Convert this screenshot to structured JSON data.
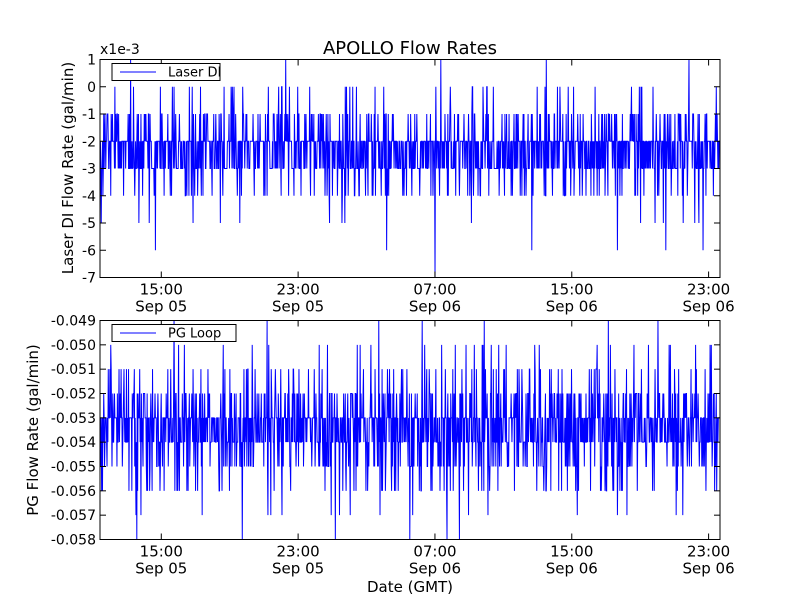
{
  "chart_data": {
    "type": "line",
    "title": "APOLLO Flow Rates",
    "xlabel": "Date (GMT)",
    "colors": {
      "series": "#0000ff"
    },
    "x_ticks": [
      {
        "time": "2015-09-05 15:00",
        "line1": "15:00",
        "line2": "Sep 05"
      },
      {
        "time": "2015-09-05 23:00",
        "line1": "23:00",
        "line2": "Sep 05"
      },
      {
        "time": "2015-09-06 07:00",
        "line1": "07:00",
        "line2": "Sep 06"
      },
      {
        "time": "2015-09-06 15:00",
        "line1": "15:00",
        "line2": "Sep 06"
      },
      {
        "time": "2015-09-06 23:00",
        "line1": "23:00",
        "line2": "Sep 06"
      }
    ],
    "x_range": [
      "2015-09-05 11:25",
      "2015-09-06 23:40"
    ],
    "panels": [
      {
        "ylabel": "Laser DI Flow Rate (gal/min)",
        "y_multiplier": "x1e-3",
        "ylim": [
          -7,
          1
        ],
        "yticks": [
          "1",
          "0",
          "-1",
          "-2",
          "-3",
          "-4",
          "-5",
          "-6",
          "-7"
        ],
        "legend": {
          "label": "Laser DI",
          "placement": "upper-left"
        },
        "series": {
          "name": "Laser DI",
          "baseline": -2.5,
          "typical_range": [
            -4,
            0
          ],
          "extremes": [
            {
              "time": "2015-09-05 14:40",
              "value": -6
            },
            {
              "time": "2015-09-06 07:00",
              "value": -7
            },
            {
              "time": "2015-09-06 04:10",
              "value": -6
            },
            {
              "time": "2015-09-06 12:40",
              "value": -6
            },
            {
              "time": "2015-09-06 17:40",
              "value": -6
            },
            {
              "time": "2015-09-06 20:30",
              "value": -6
            },
            {
              "time": "2015-09-06 22:40",
              "value": -6
            }
          ],
          "spikes_to_top": 1
        }
      },
      {
        "ylabel": "PG Flow Rate (gal/min)",
        "ylim": [
          -0.058,
          -0.049
        ],
        "yticks": [
          "-0.049",
          "-0.050",
          "-0.051",
          "-0.052",
          "-0.053",
          "-0.054",
          "-0.055",
          "-0.056",
          "-0.057",
          "-0.058"
        ],
        "legend": {
          "label": "PG Loop",
          "placement": "upper-left"
        },
        "series": {
          "name": "PG Loop",
          "baseline": -0.0535,
          "typical_range": [
            -0.056,
            -0.051
          ],
          "extremes_low": -0.058,
          "extremes_high": -0.049
        }
      }
    ]
  }
}
